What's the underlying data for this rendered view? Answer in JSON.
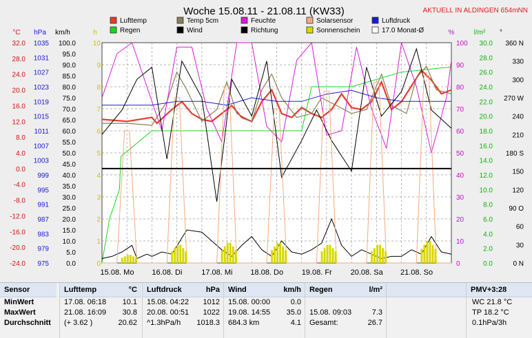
{
  "header": {
    "title": "Woche 15.08.11 - 21.08.11 (KW33)",
    "location_label": "AKTUELL IN ALDINGEN 654mNN"
  },
  "legend": [
    {
      "label": "Lufttemp",
      "color": "#e83a2a"
    },
    {
      "label": "Temp 5cm",
      "color": "#8a7f5a"
    },
    {
      "label": "Feuchte",
      "color": "#d81ad8"
    },
    {
      "label": "Solarsensor",
      "color": "#f6a97e"
    },
    {
      "label": "Luftdruck",
      "color": "#1a1ad6"
    },
    {
      "label": "Regen",
      "color": "#19d619"
    },
    {
      "label": "Wind",
      "color": "#000000"
    },
    {
      "label": "Richtung",
      "color": "#000000"
    },
    {
      "label": "Sonnenschein",
      "color": "#d8d800"
    },
    {
      "label": "17.0 Monat-Ø",
      "color": "#000000"
    }
  ],
  "axes": {
    "temp": {
      "unit": "°C",
      "ticks": [
        "32.0",
        "28.0",
        "24.0",
        "20.0",
        "16.0",
        "12.0",
        "8.0",
        "4.0",
        "0.0",
        "-4.0",
        "-8.0",
        "-12.0",
        "-16.0",
        "-20.0",
        "-24.0"
      ],
      "color": "#d81010"
    },
    "pressure": {
      "unit": "hPa",
      "ticks": [
        "1035",
        "1031",
        "1027",
        "1023",
        "1019",
        "1015",
        "1011",
        "1007",
        "1003",
        "999",
        "995",
        "991",
        "987",
        "983",
        "979",
        "975"
      ],
      "color": "#1a1ad6"
    },
    "wind": {
      "unit": "km/h",
      "ticks": [
        "100.0",
        "95.0",
        "90.0",
        "85.0",
        "80.0",
        "75.0",
        "70.0",
        "65.0",
        "60.0",
        "55.0",
        "50.0",
        "45.0",
        "40.0",
        "35.0",
        "30.0",
        "25.0",
        "20.0",
        "15.0",
        "10.0",
        "5.0",
        "0.0"
      ],
      "color": "#000000"
    },
    "sun": {
      "unit": "h",
      "ticks": [
        "10",
        "9",
        "8",
        "7",
        "6",
        "5",
        "4",
        "3",
        "2",
        "1",
        "0"
      ],
      "color": "#c8c800"
    },
    "humidity": {
      "unit": "%",
      "ticks": [
        "100",
        "90",
        "80",
        "70",
        "60",
        "50",
        "40",
        "30",
        "20",
        "10",
        "0"
      ],
      "color": "#c010c0"
    },
    "rain": {
      "unit": "l/m²",
      "ticks": [
        "30.0",
        "28.0",
        "26.0",
        "24.0",
        "22.0",
        "20.0",
        "18.0",
        "16.0",
        "14.0",
        "12.0",
        "10.0",
        "8.0",
        "6.0",
        "4.0",
        "2.0",
        "0.0"
      ],
      "color": "#10b010"
    },
    "direction": {
      "unit": "°",
      "ticks": [
        "360 N",
        "330",
        "300",
        "270 W",
        "240",
        "210",
        "180 S",
        "150",
        "120",
        "90 O",
        "60",
        "30",
        "0 N"
      ],
      "color": "#000000"
    },
    "days": [
      "15.08.  Mo",
      "16.08.  Di",
      "17.08.  Mi",
      "18.08.  Do",
      "19.08.  Fr",
      "20.08.  Sa",
      "21.08.  So"
    ]
  },
  "chart_data": {
    "type": "line",
    "title": "Woche 15.08.11 - 21.08.11 (KW33)",
    "x_unit": "Tag",
    "x_range": [
      0,
      7
    ],
    "monthly_mean_temp": 17.0,
    "series": [
      {
        "name": "Lufttemp",
        "axis": "°C",
        "x": [
          0,
          0.5,
          1,
          1.1,
          1.4,
          1.6,
          1.8,
          2,
          2.2,
          2.4,
          2.6,
          2.8,
          3,
          3.2,
          3.4,
          3.6,
          3.8,
          4,
          4.2,
          4.4,
          4.6,
          4.8,
          5,
          5.2,
          5.4,
          5.6,
          5.8,
          6,
          6.2,
          6.4,
          6.6,
          6.8,
          7
        ],
        "y": [
          12.5,
          12,
          13,
          11.5,
          15,
          17,
          14,
          12.5,
          12,
          14,
          16,
          13,
          12,
          17,
          20,
          14,
          13,
          15.5,
          14,
          13,
          15,
          19,
          15.5,
          15,
          17,
          22,
          15,
          17,
          21,
          25,
          22.5,
          19,
          20
        ]
      },
      {
        "name": "Temp 5cm",
        "axis": "°C",
        "x": [
          0,
          0.5,
          1,
          1.3,
          1.5,
          1.7,
          2,
          2.3,
          2.5,
          2.7,
          3,
          3.2,
          3.4,
          3.6,
          3.9,
          4.2,
          4.4,
          4.7,
          5,
          5.3,
          5.6,
          5.8,
          6.1,
          6.3,
          6.5,
          6.7,
          7
        ],
        "y": [
          11.5,
          11.5,
          11,
          17,
          24.5,
          20,
          12,
          15,
          22,
          14,
          12,
          20,
          24,
          18,
          13,
          14,
          18,
          16,
          14,
          15,
          24,
          16,
          14,
          23,
          26,
          20,
          19
        ]
      },
      {
        "name": "Feuchte",
        "axis": "%",
        "x": [
          0,
          0.3,
          0.6,
          0.9,
          1.2,
          1.5,
          1.8,
          2.1,
          2.4,
          2.7,
          3,
          3.3,
          3.6,
          3.9,
          4.2,
          4.5,
          4.8,
          5.1,
          5.4,
          5.7,
          6,
          6.3,
          6.6,
          6.9,
          7
        ],
        "y": [
          75,
          95,
          100,
          80,
          60,
          98,
          98,
          70,
          55,
          100,
          100,
          62,
          55,
          92,
          100,
          58,
          60,
          98,
          70,
          52,
          100,
          80,
          50,
          75,
          92
        ]
      },
      {
        "name": "Luftdruck",
        "axis": "hPa",
        "x": [
          0,
          1,
          1.5,
          2,
          2.5,
          3,
          3.5,
          4,
          4.5,
          5,
          5.5,
          6,
          6.5,
          7
        ],
        "y": [
          1018,
          1018,
          1019,
          1019,
          1018,
          1020,
          1019,
          1019,
          1021,
          1022,
          1020,
          1019,
          1019,
          1019
        ]
      },
      {
        "name": "Regen",
        "axis": "l/m²",
        "x": [
          0,
          0.05,
          0.15,
          0.25,
          0.35,
          0.38,
          1,
          2,
          3,
          4,
          4.2,
          5,
          6,
          7
        ],
        "y": [
          0,
          2,
          6,
          8,
          10,
          14.5,
          18,
          18,
          18,
          18,
          24,
          24,
          26,
          26.7
        ]
      },
      {
        "name": "Wind",
        "axis": "km/h",
        "x": [
          0,
          0.2,
          0.4,
          0.6,
          0.7,
          0.9,
          1,
          1.2,
          1.4,
          1.7,
          2,
          2.2,
          2.4,
          2.6,
          2.8,
          3,
          3.2,
          3.4,
          3.6,
          3.8,
          4,
          4.2,
          4.4,
          4.6,
          4.8,
          5,
          5.2,
          5.4,
          5.6,
          5.8,
          6,
          6.2,
          6.4,
          6.6,
          6.8,
          7
        ],
        "y": [
          2,
          3,
          5,
          8,
          2,
          4,
          3,
          5,
          4,
          15,
          14,
          10,
          6,
          3,
          8,
          12,
          6,
          3,
          10,
          5,
          4,
          6,
          9,
          20,
          8,
          3,
          6,
          4,
          2,
          3,
          3,
          6,
          4,
          12,
          5,
          4
        ]
      },
      {
        "name": "Richtung",
        "axis": "°",
        "x": [
          0,
          0.4,
          0.7,
          1,
          1.3,
          1.6,
          2,
          2.3,
          2.6,
          3,
          3.3,
          3.6,
          4,
          4.3,
          4.6,
          5,
          5.3,
          5.6,
          6,
          6.3,
          6.6,
          7
        ],
        "y": [
          210,
          250,
          300,
          320,
          170,
          330,
          270,
          100,
          300,
          240,
          330,
          140,
          200,
          250,
          200,
          150,
          320,
          240,
          280,
          350,
          250,
          220
        ]
      },
      {
        "name": "Solarsensor",
        "axis": "%",
        "x": [
          0,
          0.3,
          0.45,
          0.55,
          0.7,
          1,
          1.3,
          1.45,
          1.55,
          1.7,
          2,
          2.3,
          2.45,
          2.55,
          2.7,
          3,
          3.3,
          3.45,
          3.55,
          3.7,
          4,
          4.3,
          4.45,
          4.55,
          4.7,
          5,
          5.3,
          5.45,
          5.55,
          5.7,
          6,
          6.3,
          6.45,
          6.55,
          6.7,
          7
        ],
        "y": [
          0,
          0,
          60,
          60,
          0,
          0,
          0,
          75,
          75,
          0,
          0,
          0,
          80,
          80,
          0,
          0,
          0,
          70,
          70,
          0,
          0,
          0,
          78,
          78,
          0,
          0,
          0,
          82,
          82,
          0,
          0,
          0,
          85,
          85,
          0,
          0
        ]
      },
      {
        "name": "Sonnenschein",
        "axis": "h",
        "days": [
          0,
          1,
          2,
          3,
          4,
          5,
          6
        ],
        "y": [
          0.4,
          0.9,
          1.0,
          1.0,
          0.9,
          0.9,
          1.1
        ]
      },
      {
        "name": "17.0 Monat-Ø",
        "axis": "°C",
        "x": [
          0,
          7
        ],
        "y": [
          0,
          0
        ]
      }
    ],
    "axes_ranges": {
      "°C": [
        -24,
        32
      ],
      "hPa": [
        975,
        1035
      ],
      "km/h": [
        0,
        100
      ],
      "h": [
        0,
        10
      ],
      "%": [
        0,
        100
      ],
      "l/m²": [
        0,
        30
      ],
      "°": [
        0,
        360
      ]
    },
    "grid": true
  },
  "table": {
    "sensor": {
      "header": "Sensor",
      "rows": [
        "MinWert",
        "MaxWert",
        "Durchschnitt"
      ]
    },
    "lufttemp": {
      "header": "Lufttemp",
      "unit": "°C",
      "rows": [
        {
          "a": "17.08.  06:18",
          "b": "10.1"
        },
        {
          "a": "21.08.  16:09",
          "b": "30.8"
        },
        {
          "a": "(+ 3.62 )",
          "b": "20.62"
        }
      ]
    },
    "luftdruck": {
      "header": "Luftdruck",
      "unit": "hPa",
      "rows": [
        {
          "a": "15.08.  04:22",
          "b": "1012"
        },
        {
          "a": "20.08.  00:51",
          "b": "1022"
        },
        {
          "a": "^1.3hPa/h",
          "b": "1018.3"
        }
      ]
    },
    "wind": {
      "header": "Wind",
      "unit": "km/h",
      "rows": [
        {
          "a": "15.08.  00:00",
          "b": "0.0"
        },
        {
          "a": "19.08.  14:55",
          "b": "35.0"
        },
        {
          "a": "684.3 km",
          "b": "4.1"
        }
      ]
    },
    "regen": {
      "header": "Regen",
      "unit": "l/m²",
      "rows": [
        {
          "a": "",
          "b": ""
        },
        {
          "a": "15.08.  09:03",
          "b": "7.3"
        },
        {
          "a": "Gesamt:",
          "b": "26.7"
        }
      ]
    },
    "pmv": {
      "header": "PMV+3:28",
      "rows": [
        "WC 21.8 °C",
        "TP 18.2 °C",
        "0.1hPa/3h"
      ]
    }
  }
}
